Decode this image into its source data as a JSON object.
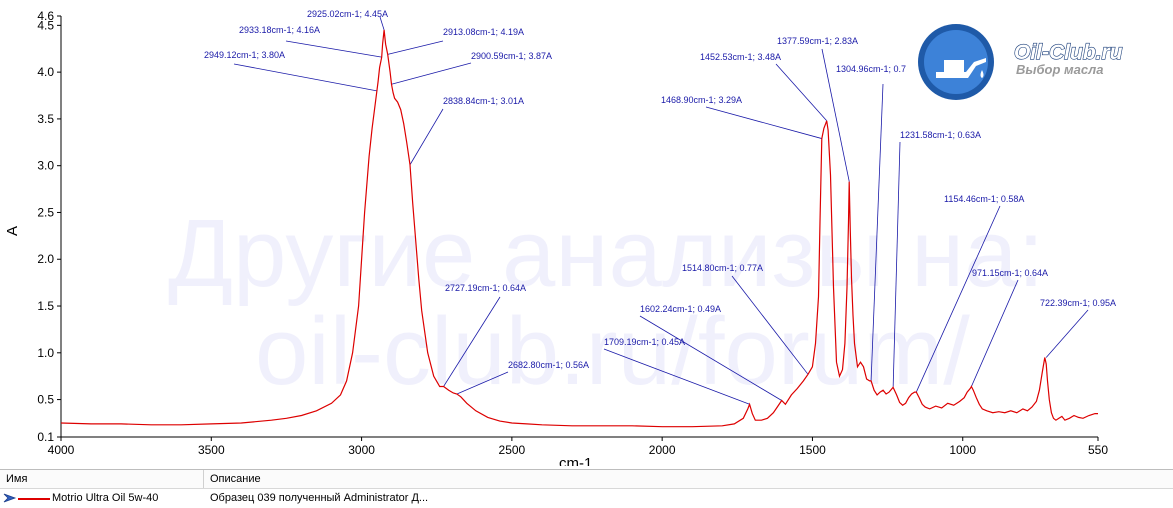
{
  "chart_data": {
    "type": "line",
    "xlabel": "cm-1",
    "ylabel": "A",
    "xlim": [
      4000,
      550
    ],
    "ylim": [
      0.1,
      4.6
    ],
    "x_ticks": [
      4000,
      3500,
      3000,
      2500,
      2000,
      1500,
      1000,
      550
    ],
    "y_ticks": [
      0.1,
      0.5,
      1.0,
      1.5,
      2.0,
      2.5,
      3.0,
      3.5,
      4.0,
      4.5,
      4.6
    ],
    "x_tick_labels": [
      "4000",
      "3500",
      "3000",
      "2500",
      "2000",
      "1500",
      "1000",
      "550"
    ],
    "y_tick_labels": [
      "0.1",
      "0.5",
      "1.0",
      "1.5",
      "2.0",
      "2.5",
      "3.0",
      "3.5",
      "4.0",
      "4.5",
      "4.6"
    ],
    "grid": false,
    "series": [
      {
        "name": "Motrio Ultra Oil 5w-40",
        "color": "#dd0000",
        "x": [
          4000,
          3900,
          3800,
          3700,
          3600,
          3500,
          3400,
          3300,
          3250,
          3200,
          3150,
          3100,
          3070,
          3050,
          3030,
          3010,
          2990,
          2975,
          2965,
          2955,
          2949.12,
          2945,
          2940,
          2933.18,
          2930,
          2925.02,
          2920,
          2913.08,
          2905,
          2900.59,
          2895,
          2890,
          2880,
          2870,
          2860,
          2850,
          2838.84,
          2830,
          2820,
          2810,
          2800,
          2780,
          2760,
          2740,
          2727.19,
          2710,
          2695,
          2682.8,
          2670,
          2650,
          2620,
          2580,
          2540,
          2500,
          2450,
          2400,
          2300,
          2200,
          2100,
          2000,
          1900,
          1800,
          1760,
          1730,
          1715,
          1709.19,
          1700,
          1690,
          1670,
          1650,
          1630,
          1615,
          1602.24,
          1590,
          1570,
          1550,
          1530,
          1514.8,
          1500,
          1490,
          1480,
          1475,
          1468.9,
          1462,
          1456,
          1452.53,
          1448,
          1440,
          1430,
          1420,
          1410,
          1400,
          1392,
          1385,
          1380,
          1377.59,
          1374,
          1370,
          1365,
          1360,
          1350,
          1340,
          1330,
          1320,
          1310,
          1304.96,
          1295,
          1285,
          1275,
          1265,
          1255,
          1245,
          1231.58,
          1220,
          1210,
          1200,
          1190,
          1180,
          1170,
          1160,
          1154.46,
          1145,
          1135,
          1125,
          1110,
          1090,
          1070,
          1050,
          1030,
          1010,
          995,
          985,
          975,
          971.15,
          965,
          955,
          945,
          935,
          920,
          900,
          880,
          860,
          840,
          820,
          800,
          785,
          770,
          755,
          745,
          735,
          727,
          722.39,
          718,
          712,
          705,
          698,
          690,
          680,
          670,
          660,
          645,
          630,
          615,
          600,
          580,
          560,
          550
        ],
        "values": [
          0.25,
          0.24,
          0.24,
          0.23,
          0.23,
          0.24,
          0.25,
          0.28,
          0.3,
          0.33,
          0.38,
          0.46,
          0.55,
          0.7,
          1.0,
          1.5,
          2.5,
          3.1,
          3.4,
          3.65,
          3.8,
          3.9,
          4.05,
          4.16,
          4.3,
          4.45,
          4.3,
          4.19,
          4.0,
          3.87,
          3.78,
          3.72,
          3.68,
          3.6,
          3.45,
          3.25,
          3.01,
          2.6,
          2.2,
          1.8,
          1.45,
          1.0,
          0.75,
          0.64,
          0.64,
          0.6,
          0.57,
          0.56,
          0.53,
          0.46,
          0.38,
          0.31,
          0.27,
          0.25,
          0.24,
          0.23,
          0.22,
          0.22,
          0.22,
          0.21,
          0.21,
          0.22,
          0.24,
          0.3,
          0.4,
          0.45,
          0.35,
          0.28,
          0.28,
          0.3,
          0.36,
          0.43,
          0.49,
          0.45,
          0.55,
          0.62,
          0.7,
          0.77,
          0.85,
          1.1,
          1.6,
          2.4,
          3.29,
          3.4,
          3.45,
          3.48,
          3.38,
          2.9,
          1.7,
          0.9,
          0.75,
          0.82,
          1.1,
          1.7,
          2.4,
          2.83,
          2.3,
          1.8,
          1.4,
          1.1,
          0.85,
          0.9,
          0.85,
          0.72,
          0.7,
          0.7,
          0.6,
          0.55,
          0.58,
          0.6,
          0.56,
          0.58,
          0.63,
          0.55,
          0.47,
          0.44,
          0.46,
          0.52,
          0.56,
          0.58,
          0.58,
          0.52,
          0.45,
          0.42,
          0.4,
          0.43,
          0.41,
          0.46,
          0.44,
          0.48,
          0.52,
          0.58,
          0.62,
          0.64,
          0.6,
          0.52,
          0.45,
          0.4,
          0.38,
          0.36,
          0.37,
          0.36,
          0.38,
          0.36,
          0.4,
          0.38,
          0.42,
          0.48,
          0.6,
          0.8,
          0.95,
          0.88,
          0.7,
          0.5,
          0.36,
          0.3,
          0.28,
          0.3,
          0.32,
          0.28,
          0.3,
          0.33,
          0.31,
          0.3,
          0.33,
          0.35,
          0.35
        ]
      }
    ],
    "annotations": [
      {
        "label": "2925.02cm-1; 4.45A",
        "x": 2925.02,
        "y": 4.45
      },
      {
        "label": "2933.18cm-1; 4.16A",
        "x": 2933.18,
        "y": 4.16
      },
      {
        "label": "2913.08cm-1; 4.19A",
        "x": 2913.08,
        "y": 4.19
      },
      {
        "label": "2949.12cm-1; 3.80A",
        "x": 2949.12,
        "y": 3.8
      },
      {
        "label": "2900.59cm-1; 3.87A",
        "x": 2900.59,
        "y": 3.87
      },
      {
        "label": "2838.84cm-1; 3.01A",
        "x": 2838.84,
        "y": 3.01
      },
      {
        "label": "2727.19cm-1; 0.64A",
        "x": 2727.19,
        "y": 0.64
      },
      {
        "label": "2682.80cm-1; 0.56A",
        "x": 2682.8,
        "y": 0.56
      },
      {
        "label": "1709.19cm-1; 0.45A",
        "x": 1709.19,
        "y": 0.45
      },
      {
        "label": "1602.24cm-1; 0.49A",
        "x": 1602.24,
        "y": 0.49
      },
      {
        "label": "1514.80cm-1; 0.77A",
        "x": 1514.8,
        "y": 0.77
      },
      {
        "label": "1468.90cm-1; 3.29A",
        "x": 1468.9,
        "y": 3.29
      },
      {
        "label": "1452.53cm-1; 3.48A",
        "x": 1452.53,
        "y": 3.48
      },
      {
        "label": "1377.59cm-1; 2.83A",
        "x": 1377.59,
        "y": 2.83
      },
      {
        "label": "1304.96cm-1; 0.7",
        "x": 1304.96,
        "y": 0.7
      },
      {
        "label": "1231.58cm-1; 0.63A",
        "x": 1231.58,
        "y": 0.63
      },
      {
        "label": "1154.46cm-1; 0.58A",
        "x": 1154.46,
        "y": 0.58
      },
      {
        "label": "971.15cm-1; 0.64A",
        "x": 971.15,
        "y": 0.64
      },
      {
        "label": "722.39cm-1; 0.95A",
        "x": 722.39,
        "y": 0.95
      }
    ]
  },
  "watermark": {
    "line1": "Другие анализы на:",
    "line2": "oil-club.ru/forum/"
  },
  "logo": {
    "title": "Oil-Club.ru",
    "subtitle": "Выбор масла"
  },
  "legend": {
    "col_name": "Имя",
    "col_desc": "Описание",
    "rows": [
      {
        "name": "Motrio Ultra Oil 5w-40",
        "description": "Образец 039 полученный Administrator Д...",
        "color": "#dd0000"
      }
    ]
  }
}
